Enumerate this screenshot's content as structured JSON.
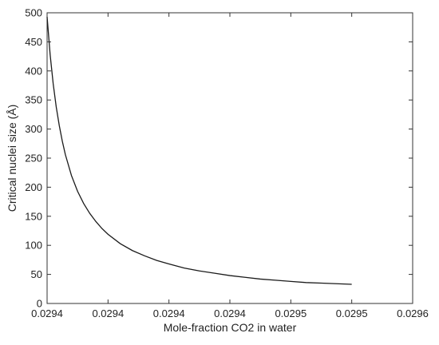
{
  "chart_data": {
    "type": "line",
    "title": "",
    "xlabel": "Mole-fraction CO2 in water",
    "ylabel": "Critical nuclei size (Å)",
    "x_tick_labels": [
      "0.0294",
      "0.0294",
      "0.0294",
      "0.0294",
      "0.0295",
      "0.0295",
      "0.0296"
    ],
    "y_ticks": [
      0,
      50,
      100,
      150,
      200,
      250,
      300,
      350,
      400,
      450,
      500
    ],
    "x_tick_fraction_range": [
      0,
      6
    ],
    "ylim": [
      0,
      500
    ],
    "grid": false,
    "legend": "none",
    "line_color": "#1a1a1a",
    "series": [
      {
        "x": [
          0.0,
          0.05,
          0.1,
          0.15,
          0.2,
          0.25,
          0.3,
          0.4,
          0.5,
          0.6,
          0.7,
          0.8,
          0.9,
          1.0,
          1.2,
          1.4,
          1.6,
          1.8,
          2.0,
          2.25,
          2.5,
          2.75,
          3.0,
          3.25,
          3.5,
          3.75,
          4.0,
          4.25,
          4.5,
          4.75,
          5.0
        ],
        "y": [
          493,
          428,
          378,
          338,
          306,
          279,
          256,
          220,
          193,
          172,
          155,
          141,
          129,
          119,
          103,
          91,
          82,
          74,
          68,
          61,
          56,
          52,
          48,
          45,
          42,
          40,
          38,
          36,
          35,
          34,
          33
        ]
      }
    ]
  }
}
